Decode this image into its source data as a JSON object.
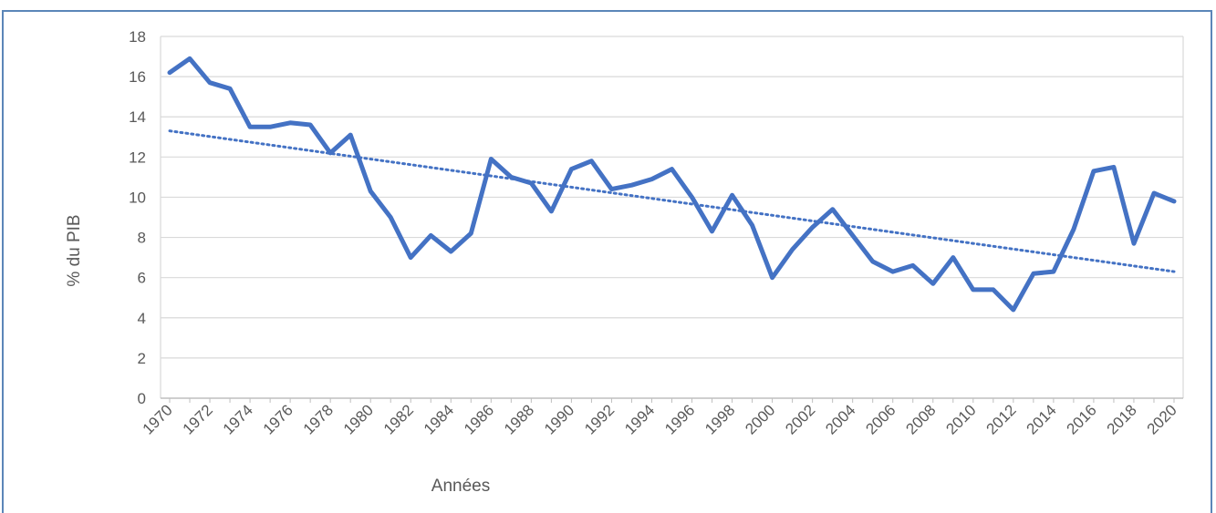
{
  "header": {
    "title": ""
  },
  "colors": {
    "series": "#4472c4",
    "trend": "#4472c4",
    "grid": "#d9d9d9",
    "frame": "#5b86b8",
    "text": "#595959"
  },
  "chart_data": {
    "type": "line",
    "title": "",
    "xlabel": "Années",
    "ylabel": "% du PIB",
    "ylim": [
      0,
      18
    ],
    "xlim": [
      1970,
      2020
    ],
    "yticks": [
      0,
      2,
      4,
      6,
      8,
      10,
      12,
      14,
      16,
      18
    ],
    "xticks": [
      1970,
      1972,
      1974,
      1976,
      1978,
      1980,
      1982,
      1984,
      1986,
      1988,
      1990,
      1992,
      1994,
      1996,
      1998,
      2000,
      2002,
      2004,
      2006,
      2008,
      2010,
      2012,
      2014,
      2016,
      2018,
      2020
    ],
    "grid": true,
    "legend": "none",
    "x": [
      1970,
      1971,
      1972,
      1973,
      1974,
      1975,
      1976,
      1977,
      1978,
      1979,
      1980,
      1981,
      1982,
      1983,
      1984,
      1985,
      1986,
      1987,
      1988,
      1989,
      1990,
      1991,
      1992,
      1993,
      1994,
      1995,
      1996,
      1997,
      1998,
      1999,
      2000,
      2001,
      2002,
      2003,
      2004,
      2005,
      2006,
      2007,
      2008,
      2009,
      2010,
      2011,
      2012,
      2013,
      2014,
      2015,
      2016,
      2017,
      2018,
      2019,
      2020
    ],
    "series": [
      {
        "values": [
          16.2,
          16.9,
          15.7,
          15.4,
          13.5,
          13.5,
          13.7,
          13.6,
          12.2,
          13.1,
          10.3,
          9.0,
          7.0,
          8.1,
          7.3,
          8.2,
          11.9,
          11.0,
          10.7,
          9.3,
          11.4,
          11.8,
          10.4,
          10.6,
          10.9,
          11.4,
          10.0,
          8.3,
          10.1,
          8.6,
          6.0,
          7.4,
          8.5,
          9.4,
          8.1,
          6.8,
          6.3,
          6.6,
          5.7,
          7.0,
          5.4,
          5.4,
          4.4,
          6.2,
          6.3,
          8.4,
          11.3,
          11.5,
          7.7,
          10.2,
          9.8
        ]
      }
    ],
    "trendline": {
      "style": "dotted",
      "start": [
        1970,
        13.3
      ],
      "end": [
        2020,
        6.3
      ]
    }
  }
}
